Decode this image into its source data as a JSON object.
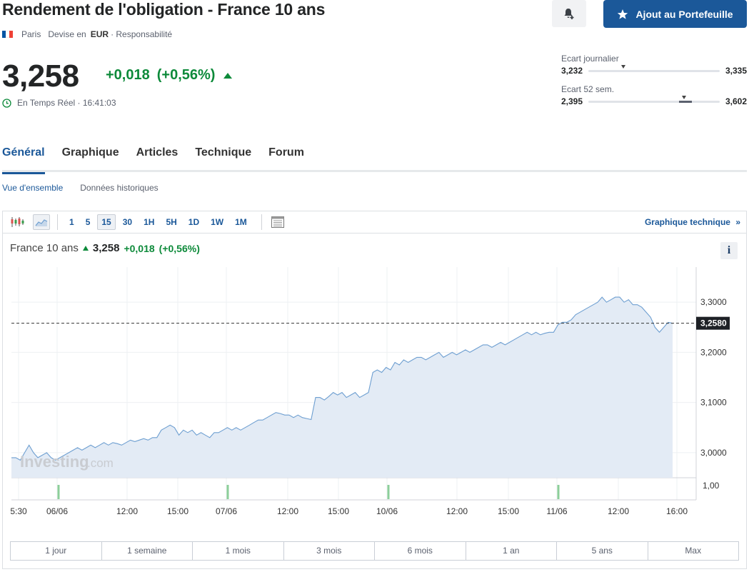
{
  "header": {
    "title": "Rendement de l'obligation - France 10 ans",
    "exchange": "Paris",
    "currency_prefix": "Devise en",
    "currency": "EUR",
    "disclaimer": "· Responsabilité",
    "portfolio_button": "Ajout au Portefeuille",
    "flag_colors": [
      "#0055a4",
      "#ffffff",
      "#ef4135"
    ]
  },
  "quote": {
    "price": "3,258",
    "change": "+0,018",
    "change_pct": "(+0,56%)",
    "realtime": "En Temps Réel · 16:41:03",
    "up_color": "#0d8a3a"
  },
  "ranges": {
    "daily": {
      "label": "Ecart journalier",
      "low": "3,232",
      "high": "3,335",
      "marker": 0.25
    },
    "week52": {
      "label": "Ecart 52 sem.",
      "low": "2,395",
      "high": "3,602",
      "marker": 0.71
    }
  },
  "tabs": [
    "Général",
    "Graphique",
    "Articles",
    "Technique",
    "Forum"
  ],
  "subtabs": [
    "Vue d'ensemble",
    "Données historiques"
  ],
  "chart_toolbar": {
    "intervals": [
      "1",
      "5",
      "15",
      "30",
      "1H",
      "5H",
      "1D",
      "1W",
      "1M"
    ],
    "active_interval": "15",
    "tech_link": "Graphique technique",
    "tech_link_arrow": "»"
  },
  "chart_header": {
    "name": "France 10 ans",
    "last": "3,258",
    "change": "+0,018",
    "change_pct": "(+0,56%)",
    "info": "i"
  },
  "watermark": {
    "brand": "Investing",
    "suffix": ".com"
  },
  "chart_data": {
    "type": "area",
    "ylim": [
      2.95,
      3.37
    ],
    "y_ticks": [
      "3,3000",
      "3,2000",
      "3,1000",
      "3,0000"
    ],
    "y_tick_values": [
      3.3,
      3.2,
      3.1,
      3.0
    ],
    "last_value": 3.258,
    "last_label": "3,2580",
    "x_labels": [
      "5:30",
      "06/06",
      "12:00",
      "15:00",
      "07/06",
      "12:00",
      "15:00",
      "10/06",
      "12:00",
      "15:00",
      "11/06",
      "12:00",
      "16:00"
    ],
    "volume_label": "1,00",
    "series": [
      {
        "values": [
          2.99,
          2.99,
          2.985,
          3.0,
          3.015,
          3.0,
          2.99,
          2.995,
          3.0,
          2.99,
          2.985,
          2.99,
          2.995,
          3.0,
          3.005,
          3.01,
          3.005,
          3.01,
          3.015,
          3.01,
          3.015,
          3.02,
          3.015,
          3.02,
          3.018,
          3.015,
          3.02,
          3.025,
          3.022,
          3.025,
          3.028,
          3.025,
          3.03,
          3.03,
          3.045,
          3.05,
          3.055,
          3.05,
          3.035,
          3.045,
          3.04,
          3.045,
          3.035,
          3.04,
          3.035,
          3.03,
          3.04,
          3.04,
          3.045,
          3.05,
          3.045,
          3.05,
          3.045,
          3.05,
          3.055,
          3.06,
          3.065,
          3.065,
          3.07,
          3.075,
          3.08,
          3.078,
          3.075,
          3.075,
          3.07,
          3.075,
          3.07,
          3.068,
          3.066,
          3.11,
          3.11,
          3.105,
          3.112,
          3.12,
          3.115,
          3.12,
          3.11,
          3.115,
          3.12,
          3.11,
          3.115,
          3.12,
          3.16,
          3.165,
          3.16,
          3.17,
          3.165,
          3.18,
          3.175,
          3.185,
          3.18,
          3.185,
          3.19,
          3.19,
          3.185,
          3.19,
          3.195,
          3.2,
          3.19,
          3.195,
          3.2,
          3.195,
          3.2,
          3.205,
          3.2,
          3.205,
          3.21,
          3.215,
          3.215,
          3.21,
          3.215,
          3.22,
          3.215,
          3.22,
          3.225,
          3.23,
          3.235,
          3.24,
          3.235,
          3.24,
          3.235,
          3.238,
          3.24,
          3.24,
          3.255,
          3.26,
          3.26,
          3.265,
          3.275,
          3.28,
          3.285,
          3.29,
          3.295,
          3.3,
          3.31,
          3.3,
          3.305,
          3.31,
          3.31,
          3.3,
          3.305,
          3.295,
          3.295,
          3.29,
          3.28,
          3.27,
          3.25,
          3.24,
          3.25,
          3.26,
          3.258
        ],
        "color": "#6e9fd1",
        "fill": "#e3ebf5"
      }
    ],
    "volume_ticks": [
      1,
      1,
      1,
      1
    ]
  },
  "periods": [
    "1 jour",
    "1 semaine",
    "1 mois",
    "3 mois",
    "6 mois",
    "1 an",
    "5 ans",
    "Max"
  ]
}
